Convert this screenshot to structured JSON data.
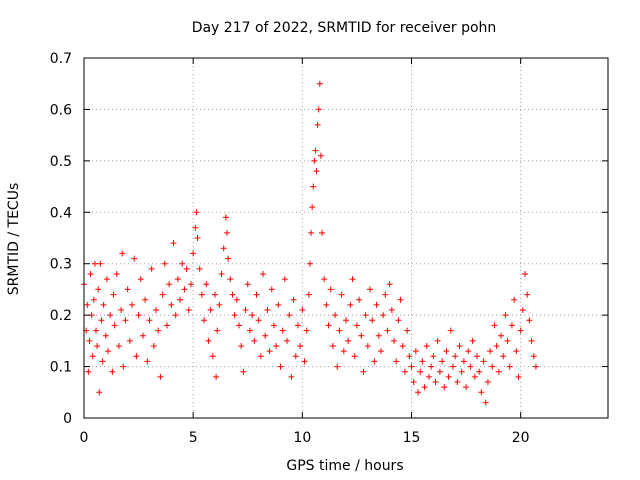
{
  "chart_data": {
    "type": "scatter",
    "title": "Day 217 of 2022, SRMTID for receiver pohn",
    "xlabel": "GPS time / hours",
    "ylabel": "SRMTID / TECUs",
    "xlim": [
      0,
      24
    ],
    "ylim": [
      0,
      0.7
    ],
    "xticks": [
      0,
      5,
      10,
      15,
      20
    ],
    "yticks": [
      0,
      0.1,
      0.2,
      0.3,
      0.4,
      0.5,
      0.6,
      0.7
    ],
    "grid": true,
    "marker": "+",
    "color": "#ff0000",
    "series": [
      {
        "name": "SRMTID",
        "points": [
          [
            0.0,
            0.26
          ],
          [
            0.1,
            0.17
          ],
          [
            0.15,
            0.22
          ],
          [
            0.2,
            0.09
          ],
          [
            0.25,
            0.15
          ],
          [
            0.3,
            0.28
          ],
          [
            0.35,
            0.2
          ],
          [
            0.4,
            0.12
          ],
          [
            0.45,
            0.23
          ],
          [
            0.5,
            0.3
          ],
          [
            0.55,
            0.17
          ],
          [
            0.6,
            0.14
          ],
          [
            0.65,
            0.25
          ],
          [
            0.7,
            0.05
          ],
          [
            0.75,
            0.3
          ],
          [
            0.8,
            0.19
          ],
          [
            0.85,
            0.11
          ],
          [
            0.9,
            0.22
          ],
          [
            1.0,
            0.16
          ],
          [
            1.05,
            0.27
          ],
          [
            1.1,
            0.13
          ],
          [
            1.2,
            0.2
          ],
          [
            1.3,
            0.09
          ],
          [
            1.35,
            0.24
          ],
          [
            1.4,
            0.18
          ],
          [
            1.5,
            0.28
          ],
          [
            1.6,
            0.14
          ],
          [
            1.7,
            0.21
          ],
          [
            1.75,
            0.32
          ],
          [
            1.8,
            0.1
          ],
          [
            1.9,
            0.19
          ],
          [
            2.0,
            0.25
          ],
          [
            2.1,
            0.15
          ],
          [
            2.2,
            0.22
          ],
          [
            2.3,
            0.31
          ],
          [
            2.4,
            0.12
          ],
          [
            2.5,
            0.2
          ],
          [
            2.6,
            0.27
          ],
          [
            2.7,
            0.16
          ],
          [
            2.8,
            0.23
          ],
          [
            2.9,
            0.11
          ],
          [
            3.0,
            0.19
          ],
          [
            3.1,
            0.29
          ],
          [
            3.2,
            0.14
          ],
          [
            3.3,
            0.21
          ],
          [
            3.4,
            0.17
          ],
          [
            3.5,
            0.08
          ],
          [
            3.6,
            0.24
          ],
          [
            3.7,
            0.3
          ],
          [
            3.8,
            0.18
          ],
          [
            3.9,
            0.26
          ],
          [
            4.0,
            0.22
          ],
          [
            4.1,
            0.34
          ],
          [
            4.2,
            0.2
          ],
          [
            4.3,
            0.27
          ],
          [
            4.4,
            0.23
          ],
          [
            4.5,
            0.3
          ],
          [
            4.6,
            0.25
          ],
          [
            4.7,
            0.29
          ],
          [
            4.8,
            0.21
          ],
          [
            4.9,
            0.26
          ],
          [
            5.0,
            0.32
          ],
          [
            5.1,
            0.37
          ],
          [
            5.15,
            0.4
          ],
          [
            5.2,
            0.35
          ],
          [
            5.3,
            0.29
          ],
          [
            5.4,
            0.24
          ],
          [
            5.5,
            0.19
          ],
          [
            5.6,
            0.26
          ],
          [
            5.7,
            0.15
          ],
          [
            5.8,
            0.21
          ],
          [
            5.9,
            0.12
          ],
          [
            6.0,
            0.24
          ],
          [
            6.05,
            0.08
          ],
          [
            6.1,
            0.17
          ],
          [
            6.2,
            0.22
          ],
          [
            6.3,
            0.28
          ],
          [
            6.4,
            0.33
          ],
          [
            6.5,
            0.39
          ],
          [
            6.55,
            0.36
          ],
          [
            6.6,
            0.31
          ],
          [
            6.7,
            0.27
          ],
          [
            6.8,
            0.24
          ],
          [
            6.9,
            0.2
          ],
          [
            7.0,
            0.23
          ],
          [
            7.1,
            0.18
          ],
          [
            7.2,
            0.14
          ],
          [
            7.3,
            0.09
          ],
          [
            7.4,
            0.21
          ],
          [
            7.5,
            0.26
          ],
          [
            7.6,
            0.17
          ],
          [
            7.7,
            0.2
          ],
          [
            7.8,
            0.15
          ],
          [
            7.9,
            0.24
          ],
          [
            8.0,
            0.19
          ],
          [
            8.1,
            0.12
          ],
          [
            8.2,
            0.28
          ],
          [
            8.3,
            0.16
          ],
          [
            8.4,
            0.21
          ],
          [
            8.5,
            0.13
          ],
          [
            8.6,
            0.25
          ],
          [
            8.7,
            0.18
          ],
          [
            8.8,
            0.14
          ],
          [
            8.9,
            0.22
          ],
          [
            9.0,
            0.1
          ],
          [
            9.1,
            0.17
          ],
          [
            9.2,
            0.27
          ],
          [
            9.3,
            0.15
          ],
          [
            9.4,
            0.2
          ],
          [
            9.5,
            0.08
          ],
          [
            9.6,
            0.23
          ],
          [
            9.7,
            0.12
          ],
          [
            9.8,
            0.18
          ],
          [
            9.9,
            0.14
          ],
          [
            10.0,
            0.21
          ],
          [
            10.1,
            0.11
          ],
          [
            10.2,
            0.17
          ],
          [
            10.3,
            0.24
          ],
          [
            10.35,
            0.3
          ],
          [
            10.4,
            0.36
          ],
          [
            10.45,
            0.41
          ],
          [
            10.5,
            0.45
          ],
          [
            10.55,
            0.5
          ],
          [
            10.6,
            0.52
          ],
          [
            10.65,
            0.48
          ],
          [
            10.7,
            0.57
          ],
          [
            10.75,
            0.6
          ],
          [
            10.8,
            0.65
          ],
          [
            10.85,
            0.51
          ],
          [
            10.9,
            0.36
          ],
          [
            11.0,
            0.27
          ],
          [
            11.1,
            0.22
          ],
          [
            11.2,
            0.18
          ],
          [
            11.3,
            0.25
          ],
          [
            11.4,
            0.14
          ],
          [
            11.5,
            0.2
          ],
          [
            11.6,
            0.1
          ],
          [
            11.7,
            0.17
          ],
          [
            11.8,
            0.24
          ],
          [
            11.9,
            0.13
          ],
          [
            12.0,
            0.19
          ],
          [
            12.1,
            0.15
          ],
          [
            12.2,
            0.22
          ],
          [
            12.3,
            0.27
          ],
          [
            12.4,
            0.12
          ],
          [
            12.5,
            0.18
          ],
          [
            12.6,
            0.23
          ],
          [
            12.7,
            0.16
          ],
          [
            12.8,
            0.09
          ],
          [
            12.9,
            0.2
          ],
          [
            13.0,
            0.14
          ],
          [
            13.1,
            0.25
          ],
          [
            13.2,
            0.19
          ],
          [
            13.3,
            0.11
          ],
          [
            13.4,
            0.22
          ],
          [
            13.5,
            0.16
          ],
          [
            13.6,
            0.13
          ],
          [
            13.7,
            0.2
          ],
          [
            13.8,
            0.24
          ],
          [
            13.9,
            0.17
          ],
          [
            14.0,
            0.26
          ],
          [
            14.1,
            0.21
          ],
          [
            14.2,
            0.15
          ],
          [
            14.3,
            0.11
          ],
          [
            14.4,
            0.19
          ],
          [
            14.5,
            0.23
          ],
          [
            14.6,
            0.14
          ],
          [
            14.7,
            0.09
          ],
          [
            14.8,
            0.17
          ],
          [
            14.9,
            0.12
          ],
          [
            15.0,
            0.1
          ],
          [
            15.1,
            0.07
          ],
          [
            15.2,
            0.13
          ],
          [
            15.3,
            0.05
          ],
          [
            15.4,
            0.09
          ],
          [
            15.5,
            0.11
          ],
          [
            15.6,
            0.06
          ],
          [
            15.7,
            0.14
          ],
          [
            15.8,
            0.08
          ],
          [
            15.9,
            0.1
          ],
          [
            16.0,
            0.12
          ],
          [
            16.1,
            0.07
          ],
          [
            16.2,
            0.15
          ],
          [
            16.3,
            0.09
          ],
          [
            16.4,
            0.11
          ],
          [
            16.5,
            0.06
          ],
          [
            16.6,
            0.13
          ],
          [
            16.7,
            0.08
          ],
          [
            16.8,
            0.17
          ],
          [
            16.9,
            0.1
          ],
          [
            17.0,
            0.12
          ],
          [
            17.1,
            0.07
          ],
          [
            17.2,
            0.14
          ],
          [
            17.3,
            0.09
          ],
          [
            17.4,
            0.11
          ],
          [
            17.5,
            0.06
          ],
          [
            17.6,
            0.13
          ],
          [
            17.7,
            0.1
          ],
          [
            17.8,
            0.15
          ],
          [
            17.9,
            0.08
          ],
          [
            18.0,
            0.12
          ],
          [
            18.1,
            0.09
          ],
          [
            18.2,
            0.05
          ],
          [
            18.3,
            0.11
          ],
          [
            18.4,
            0.03
          ],
          [
            18.5,
            0.07
          ],
          [
            18.6,
            0.13
          ],
          [
            18.7,
            0.1
          ],
          [
            18.8,
            0.18
          ],
          [
            18.9,
            0.14
          ],
          [
            19.0,
            0.09
          ],
          [
            19.1,
            0.16
          ],
          [
            19.2,
            0.12
          ],
          [
            19.3,
            0.2
          ],
          [
            19.4,
            0.15
          ],
          [
            19.5,
            0.1
          ],
          [
            19.6,
            0.18
          ],
          [
            19.7,
            0.23
          ],
          [
            19.8,
            0.13
          ],
          [
            19.9,
            0.08
          ],
          [
            20.0,
            0.17
          ],
          [
            20.1,
            0.21
          ],
          [
            20.2,
            0.28
          ],
          [
            20.3,
            0.24
          ],
          [
            20.4,
            0.19
          ],
          [
            20.5,
            0.15
          ],
          [
            20.6,
            0.12
          ],
          [
            20.7,
            0.1
          ]
        ]
      }
    ]
  }
}
